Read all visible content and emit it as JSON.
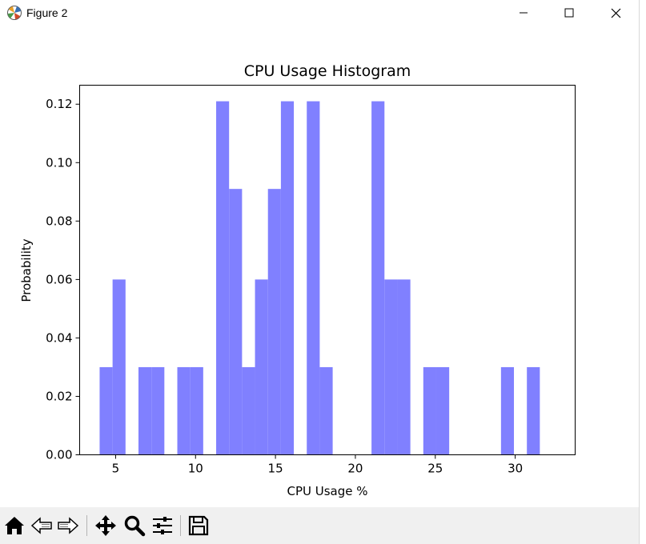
{
  "window": {
    "title": "Figure 2",
    "icons": {
      "app": "matplotlib-icon",
      "minimize": "minimize-icon",
      "maximize": "maximize-icon",
      "close": "close-icon"
    }
  },
  "toolbar": {
    "buttons": [
      {
        "name": "home",
        "icon": "home-icon"
      },
      {
        "name": "back",
        "icon": "back-arrow-icon"
      },
      {
        "name": "forward",
        "icon": "forward-arrow-icon"
      },
      {
        "name": "pan",
        "icon": "move-icon"
      },
      {
        "name": "zoom",
        "icon": "magnifier-icon"
      },
      {
        "name": "configure-subplots",
        "icon": "sliders-icon"
      },
      {
        "name": "save",
        "icon": "floppy-disk-icon"
      }
    ]
  },
  "chart_data": {
    "type": "bar",
    "title": "CPU Usage Histogram",
    "xlabel": "CPU Usage %",
    "ylabel": "Probability",
    "bar_color": "#8080ff",
    "xlim": [
      2.75,
      33.75
    ],
    "ylim": [
      0,
      0.1265
    ],
    "xticks": [
      5,
      10,
      15,
      20,
      25,
      30
    ],
    "yticks": [
      0.0,
      0.02,
      0.04,
      0.06,
      0.08,
      0.1,
      0.12
    ],
    "ytick_labels": [
      "0.00",
      "0.02",
      "0.04",
      "0.06",
      "0.08",
      "0.10",
      "0.12"
    ],
    "bin_start": 4.0,
    "bin_width": 0.81,
    "values": [
      0.03,
      0.06,
      0,
      0.03,
      0.03,
      0,
      0.03,
      0.03,
      0,
      0.121,
      0.091,
      0.03,
      0.06,
      0.091,
      0.121,
      0,
      0.121,
      0.03,
      0,
      0,
      0,
      0.121,
      0.06,
      0.06,
      0,
      0.03,
      0.03,
      0,
      0,
      0,
      0,
      0.03,
      0,
      0.03
    ],
    "grid": false
  }
}
